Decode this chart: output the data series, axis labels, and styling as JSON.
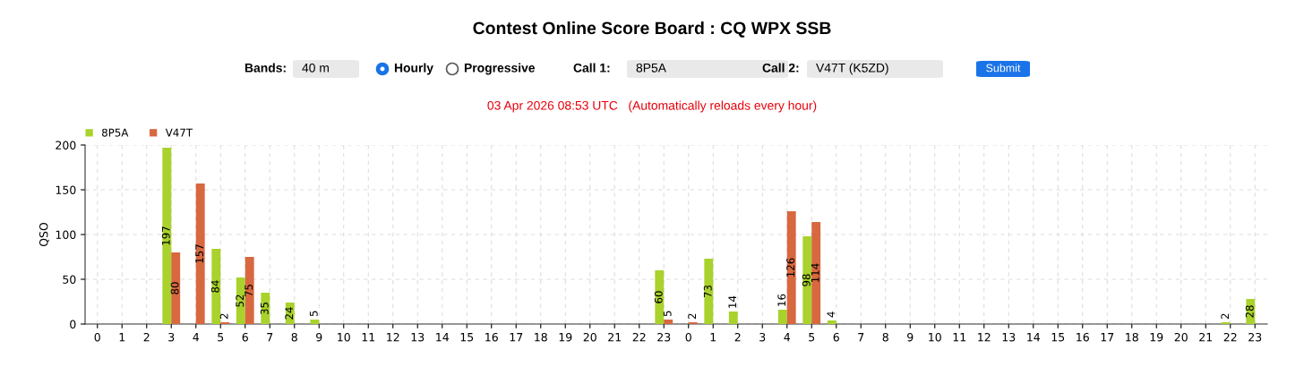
{
  "chart_data": {
    "type": "bar",
    "title": "Contest Online Score Board : CQ WPX SSB",
    "subtitle": "03 Apr 2026 08:53 UTC   (Automatically reloads every hour)",
    "ylabel": "QSO",
    "annotations": [
      "Bands:",
      "40 m",
      "Hourly",
      "Progressive",
      "Call 1:",
      "8P5A",
      "Call 2:",
      "V47T (K5ZD)",
      "Submit"
    ],
    "categories": [
      "0",
      "1",
      "2",
      "3",
      "4",
      "5",
      "6",
      "7",
      "8",
      "9",
      "10",
      "11",
      "12",
      "13",
      "14",
      "15",
      "16",
      "17",
      "18",
      "19",
      "20",
      "21",
      "22",
      "23",
      "0",
      "1",
      "2",
      "3",
      "4",
      "5",
      "6",
      "7",
      "8",
      "9",
      "10",
      "11",
      "12",
      "13",
      "14",
      "15",
      "16",
      "17",
      "18",
      "19",
      "20",
      "21",
      "22",
      "23"
    ],
    "series": [
      {
        "name": "8P5A",
        "color": "#a9d22c",
        "values": [
          0,
          0,
          0,
          197,
          0,
          84,
          52,
          35,
          24,
          5,
          0,
          0,
          0,
          0,
          0,
          0,
          0,
          0,
          0,
          0,
          0,
          0,
          0,
          60,
          0,
          73,
          14,
          0,
          16,
          98,
          4,
          0,
          0,
          0,
          0,
          0,
          0,
          0,
          0,
          0,
          0,
          0,
          0,
          0,
          0,
          0,
          2,
          28
        ],
        "value_labels": [
          null,
          null,
          null,
          "197",
          null,
          "84",
          "52",
          "35",
          "24",
          "5",
          null,
          null,
          null,
          null,
          null,
          null,
          null,
          null,
          null,
          null,
          null,
          null,
          null,
          "60",
          null,
          "73",
          "14",
          null,
          "16",
          "98",
          "4",
          null,
          null,
          null,
          null,
          null,
          null,
          null,
          null,
          null,
          null,
          null,
          null,
          null,
          null,
          null,
          "2",
          "28"
        ]
      },
      {
        "name": "V47T",
        "color": "#d8683f",
        "values": [
          0,
          0,
          0,
          80,
          157,
          2,
          75,
          0,
          0,
          0,
          0,
          0,
          0,
          0,
          0,
          0,
          0,
          0,
          0,
          0,
          0,
          0,
          0,
          5,
          2,
          0,
          0,
          0,
          126,
          114,
          0,
          0,
          0,
          0,
          0,
          0,
          0,
          0,
          0,
          0,
          0,
          0,
          0,
          0,
          0,
          0,
          0,
          0
        ],
        "value_labels": [
          null,
          null,
          null,
          "80",
          "157",
          "2",
          "75",
          null,
          null,
          null,
          null,
          null,
          null,
          null,
          null,
          null,
          null,
          null,
          null,
          null,
          null,
          null,
          null,
          "5",
          "2",
          null,
          null,
          null,
          "126",
          "114",
          null,
          null,
          null,
          null,
          null,
          null,
          null,
          null,
          null,
          null,
          null,
          null,
          null,
          null,
          null,
          null,
          null,
          null
        ]
      }
    ],
    "ylim": [
      0,
      200
    ],
    "yticks": [
      0,
      50,
      100,
      150,
      200
    ],
    "grid": true,
    "legend": "top left"
  }
}
